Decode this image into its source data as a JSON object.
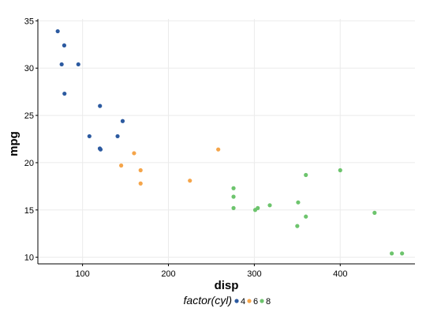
{
  "chart_data": {
    "type": "scatter",
    "title": "",
    "xlabel": "disp",
    "ylabel": "mpg",
    "xlim": [
      48,
      487
    ],
    "ylim": [
      9.3,
      35.2
    ],
    "xticks": [
      100,
      200,
      300,
      400
    ],
    "yticks": [
      10,
      15,
      20,
      25,
      30,
      35
    ],
    "grid": true,
    "legend": {
      "title": "factor(cyl)",
      "position": "bottom",
      "entries": [
        {
          "label": "4",
          "color": "#2c5aa0"
        },
        {
          "label": "6",
          "color": "#f5a54a"
        },
        {
          "label": "8",
          "color": "#6dc46d"
        }
      ]
    },
    "series": [
      {
        "name": "4",
        "color": "#2c5aa0",
        "points": [
          [
            108,
            22.8
          ],
          [
            146.7,
            24.4
          ],
          [
            140.8,
            22.8
          ],
          [
            78.7,
            32.4
          ],
          [
            75.7,
            30.4
          ],
          [
            71.1,
            33.9
          ],
          [
            120.1,
            21.5
          ],
          [
            79,
            27.3
          ],
          [
            120.3,
            26
          ],
          [
            95.1,
            30.4
          ],
          [
            121,
            21.4
          ]
        ]
      },
      {
        "name": "6",
        "color": "#f5a54a",
        "points": [
          [
            160,
            21
          ],
          [
            258,
            21.4
          ],
          [
            225,
            18.1
          ],
          [
            167.6,
            19.2
          ],
          [
            167.6,
            17.8
          ],
          [
            145,
            19.7
          ]
        ]
      },
      {
        "name": "8",
        "color": "#6dc46d",
        "points": [
          [
            360,
            18.7
          ],
          [
            360,
            14.3
          ],
          [
            275.8,
            16.4
          ],
          [
            275.8,
            17.3
          ],
          [
            275.8,
            15.2
          ],
          [
            472,
            10.4
          ],
          [
            460,
            10.4
          ],
          [
            440,
            14.7
          ],
          [
            318,
            15.5
          ],
          [
            304,
            15.2
          ],
          [
            350,
            13.3
          ],
          [
            400,
            19.2
          ],
          [
            351,
            15.8
          ],
          [
            301,
            15
          ]
        ]
      }
    ]
  }
}
